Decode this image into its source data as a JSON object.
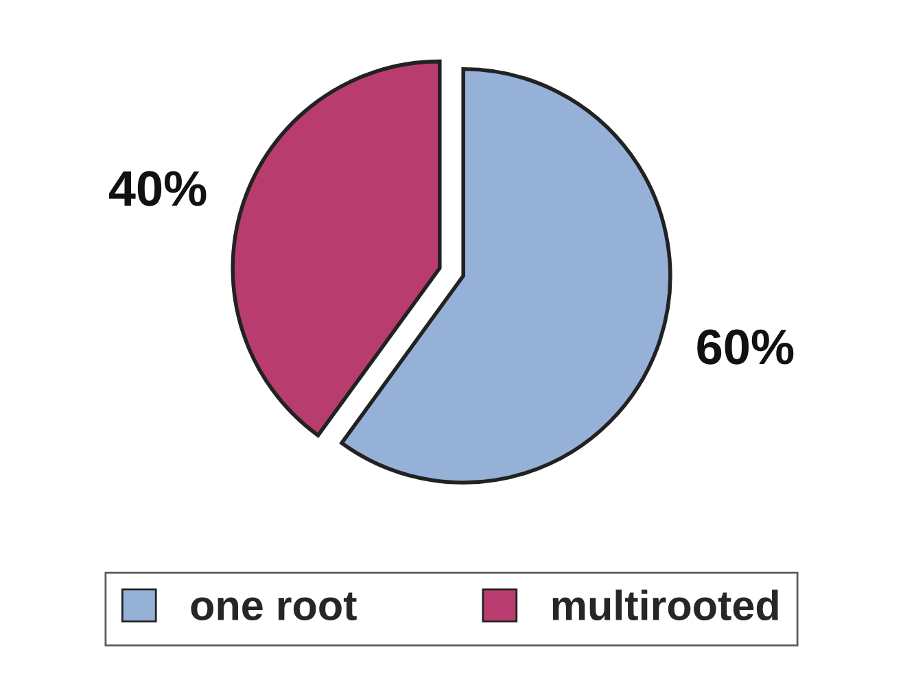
{
  "chart_data": {
    "type": "pie",
    "categories": [
      "one root",
      "multirooted"
    ],
    "values": [
      60,
      40
    ],
    "colors": [
      "#95b1d8",
      "#b83d6e"
    ],
    "value_labels": [
      "60%",
      "40%"
    ],
    "legend": "bottom"
  }
}
